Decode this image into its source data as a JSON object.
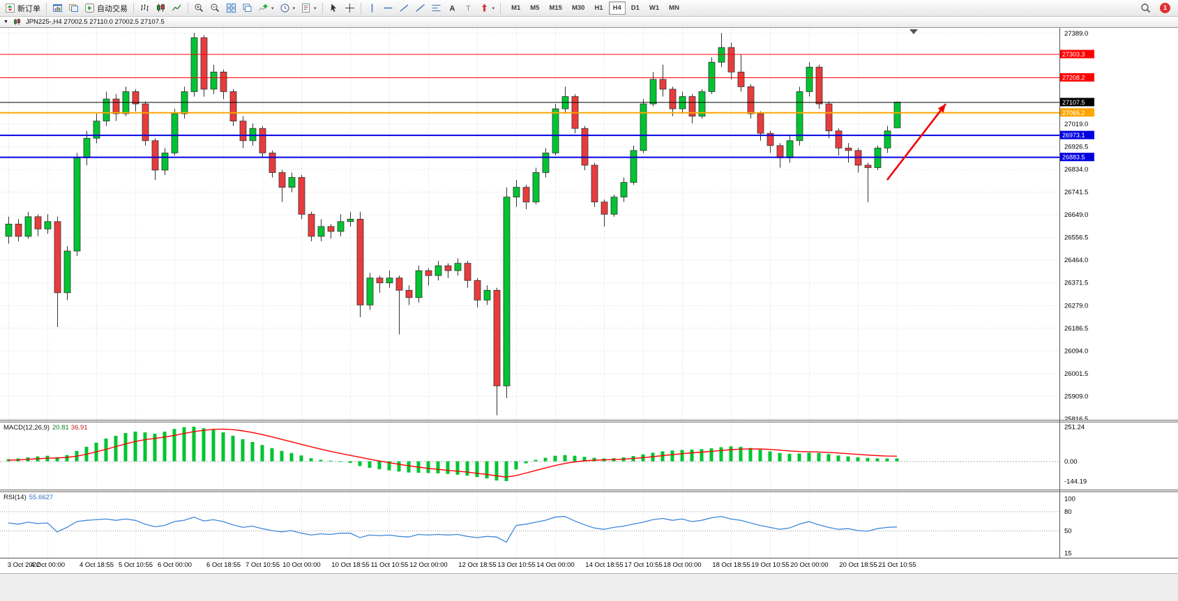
{
  "icons": {
    "dropdown_caret": "▼",
    "button_caret": "▾"
  },
  "toolbar": {
    "buttons": [
      {
        "name": "new-order",
        "icon": "new-order",
        "label": "新订单"
      },
      {
        "sep": true
      },
      {
        "name": "charts",
        "icon": "chart-window"
      },
      {
        "name": "profiles",
        "icon": "profiles"
      },
      {
        "name": "autotrading",
        "icon": "autotrading",
        "label": "自动交易"
      },
      {
        "sep": true
      },
      {
        "name": "chart-bars",
        "icon": "bars"
      },
      {
        "name": "chart-candles",
        "icon": "candles"
      },
      {
        "name": "chart-line",
        "icon": "line"
      },
      {
        "sep": true
      },
      {
        "name": "zoom-in",
        "icon": "zoom-in"
      },
      {
        "name": "zoom-out",
        "icon": "zoom-out"
      },
      {
        "name": "tile-windows",
        "icon": "tile"
      },
      {
        "name": "auto-arrange",
        "icon": "arrange"
      },
      {
        "name": "indicators",
        "icon": "indicators",
        "caret": true
      },
      {
        "name": "periods",
        "icon": "clock",
        "caret": true
      },
      {
        "name": "templates",
        "icon": "template",
        "caret": true
      },
      {
        "sep": true
      },
      {
        "name": "cursor",
        "icon": "cursor"
      },
      {
        "name": "crosshair",
        "icon": "crosshair"
      },
      {
        "sep": true
      },
      {
        "name": "vertical-line",
        "icon": "vline"
      },
      {
        "name": "horizontal-line",
        "icon": "hline"
      },
      {
        "name": "trendline",
        "icon": "trend"
      },
      {
        "name": "equidistant-channel",
        "icon": "channel"
      },
      {
        "name": "fibonacci-retracement",
        "icon": "fibo"
      },
      {
        "name": "text",
        "icon": "text"
      },
      {
        "name": "text-label",
        "icon": "label"
      },
      {
        "name": "arrows",
        "icon": "shapes",
        "caret": true
      },
      {
        "sep": true
      }
    ],
    "timeframes": [
      {
        "label": "M1"
      },
      {
        "label": "M5"
      },
      {
        "label": "M15"
      },
      {
        "label": "M30"
      },
      {
        "label": "H1"
      },
      {
        "label": "H4",
        "active": true
      },
      {
        "label": "D1"
      },
      {
        "label": "W1"
      },
      {
        "label": "MN"
      }
    ],
    "right": {
      "badge": "1"
    }
  },
  "window": {
    "title": "JPN225-,H4  27002.5 27110.0 27002.5 27107.5"
  },
  "chart_data": {
    "type": "candlestick",
    "symbol": "JPN225-",
    "period": "H4",
    "y_range": {
      "top": 27410,
      "bottom": 25812
    },
    "y_ticks": [
      27389.0,
      27019.0,
      26926.5,
      26834.0,
      26741.5,
      26649.0,
      26556.5,
      26464.0,
      26371.5,
      26279.0,
      26186.5,
      26094.0,
      26001.5,
      25909.0,
      25816.5
    ],
    "time_labels": [
      {
        "t": "3 Oct 2022",
        "i": 0
      },
      {
        "t": "4 Oct 00:00",
        "i": 4
      },
      {
        "t": "4 Oct 18:55",
        "i": 9
      },
      {
        "t": "5 Oct 10:55",
        "i": 13
      },
      {
        "t": "6 Oct 00:00",
        "i": 17
      },
      {
        "t": "6 Oct 18:55",
        "i": 22
      },
      {
        "t": "7 Oct 10:55",
        "i": 26
      },
      {
        "t": "10 Oct 00:00",
        "i": 30
      },
      {
        "t": "10 Oct 18:55",
        "i": 35
      },
      {
        "t": "11 Oct 10:55",
        "i": 39
      },
      {
        "t": "12 Oct 00:00",
        "i": 43
      },
      {
        "t": "12 Oct 18:55",
        "i": 48
      },
      {
        "t": "13 Oct 10:55",
        "i": 52
      },
      {
        "t": "14 Oct 00:00",
        "i": 56
      },
      {
        "t": "14 Oct 18:55",
        "i": 61
      },
      {
        "t": "17 Oct 10:55",
        "i": 65
      },
      {
        "t": "18 Oct 00:00",
        "i": 69
      },
      {
        "t": "18 Oct 18:55",
        "i": 74
      },
      {
        "t": "19 Oct 10:55",
        "i": 78
      },
      {
        "t": "20 Oct 00:00",
        "i": 82
      },
      {
        "t": "20 Oct 18:55",
        "i": 87
      },
      {
        "t": "21 Oct 10:55",
        "i": 91
      }
    ],
    "candles": [
      [
        26560,
        26640,
        26530,
        26610
      ],
      [
        26610,
        26630,
        26540,
        26560
      ],
      [
        26560,
        26660,
        26550,
        26640
      ],
      [
        26640,
        26650,
        26560,
        26590
      ],
      [
        26590,
        26650,
        26570,
        26620
      ],
      [
        26620,
        26640,
        26190,
        26330
      ],
      [
        26330,
        26520,
        26300,
        26500
      ],
      [
        26500,
        26900,
        26480,
        26880
      ],
      [
        26880,
        26990,
        26850,
        26960
      ],
      [
        26960,
        27060,
        26940,
        27030
      ],
      [
        27030,
        27150,
        27010,
        27120
      ],
      [
        27120,
        27140,
        27030,
        27060
      ],
      [
        27060,
        27170,
        27050,
        27150
      ],
      [
        27150,
        27160,
        27070,
        27100
      ],
      [
        27100,
        27110,
        26930,
        26950
      ],
      [
        26950,
        26960,
        26790,
        26830
      ],
      [
        26830,
        26920,
        26810,
        26900
      ],
      [
        26900,
        27080,
        26890,
        27060
      ],
      [
        27060,
        27170,
        27040,
        27150
      ],
      [
        27150,
        27389,
        27130,
        27370
      ],
      [
        27370,
        27380,
        27130,
        27160
      ],
      [
        27160,
        27260,
        27140,
        27230
      ],
      [
        27230,
        27240,
        27120,
        27150
      ],
      [
        27150,
        27160,
        27010,
        27030
      ],
      [
        27030,
        27050,
        26920,
        26950
      ],
      [
        26950,
        27020,
        26930,
        27000
      ],
      [
        27000,
        27010,
        26880,
        26900
      ],
      [
        26900,
        26910,
        26800,
        26820
      ],
      [
        26820,
        26830,
        26700,
        26760
      ],
      [
        26760,
        26820,
        26740,
        26800
      ],
      [
        26800,
        26810,
        26630,
        26650
      ],
      [
        26650,
        26660,
        26540,
        26560
      ],
      [
        26560,
        26630,
        26540,
        26600
      ],
      [
        26600,
        26610,
        26550,
        26580
      ],
      [
        26580,
        26650,
        26560,
        26620
      ],
      [
        26620,
        26660,
        26600,
        26630
      ],
      [
        26630,
        26660,
        26230,
        26280
      ],
      [
        26280,
        26410,
        26260,
        26390
      ],
      [
        26390,
        26400,
        26330,
        26370
      ],
      [
        26370,
        26420,
        26350,
        26390
      ],
      [
        26390,
        26400,
        26160,
        26340
      ],
      [
        26340,
        26360,
        26280,
        26310
      ],
      [
        26310,
        26440,
        26290,
        26420
      ],
      [
        26420,
        26430,
        26360,
        26400
      ],
      [
        26400,
        26460,
        26380,
        26440
      ],
      [
        26440,
        26450,
        26390,
        26420
      ],
      [
        26420,
        26470,
        26400,
        26450
      ],
      [
        26450,
        26460,
        26350,
        26380
      ],
      [
        26380,
        26390,
        26270,
        26300
      ],
      [
        26300,
        26360,
        26280,
        26340
      ],
      [
        26340,
        26350,
        25830,
        25950
      ],
      [
        25950,
        26760,
        25900,
        26720
      ],
      [
        26720,
        26790,
        26680,
        26760
      ],
      [
        26760,
        26770,
        26670,
        26700
      ],
      [
        26700,
        26840,
        26690,
        26820
      ],
      [
        26820,
        26920,
        26800,
        26900
      ],
      [
        26900,
        27100,
        26890,
        27080
      ],
      [
        27080,
        27170,
        27060,
        27130
      ],
      [
        27130,
        27140,
        26980,
        27000
      ],
      [
        27000,
        27010,
        26830,
        26850
      ],
      [
        26850,
        26860,
        26680,
        26700
      ],
      [
        26700,
        26710,
        26600,
        26650
      ],
      [
        26650,
        26730,
        26640,
        26720
      ],
      [
        26720,
        26800,
        26700,
        26780
      ],
      [
        26780,
        26930,
        26770,
        26910
      ],
      [
        26910,
        27120,
        26900,
        27100
      ],
      [
        27100,
        27230,
        27090,
        27200
      ],
      [
        27200,
        27260,
        27130,
        27160
      ],
      [
        27160,
        27170,
        27050,
        27080
      ],
      [
        27080,
        27150,
        27060,
        27130
      ],
      [
        27130,
        27140,
        27020,
        27050
      ],
      [
        27050,
        27160,
        27040,
        27150
      ],
      [
        27150,
        27290,
        27140,
        27270
      ],
      [
        27270,
        27389,
        27250,
        27330
      ],
      [
        27330,
        27350,
        27200,
        27230
      ],
      [
        27230,
        27300,
        27150,
        27170
      ],
      [
        27170,
        27180,
        27040,
        27060
      ],
      [
        27060,
        27070,
        26950,
        26980
      ],
      [
        26980,
        26990,
        26900,
        26930
      ],
      [
        26930,
        26940,
        26840,
        26880
      ],
      [
        26880,
        26970,
        26860,
        26950
      ],
      [
        26950,
        27170,
        26930,
        27150
      ],
      [
        27150,
        27270,
        27130,
        27250
      ],
      [
        27250,
        27260,
        27080,
        27100
      ],
      [
        27100,
        27110,
        26960,
        26990
      ],
      [
        26990,
        27000,
        26890,
        26920
      ],
      [
        26920,
        26940,
        26860,
        26910
      ],
      [
        26910,
        26920,
        26820,
        26850
      ],
      [
        26850,
        26860,
        26700,
        26840
      ],
      [
        26840,
        26930,
        26830,
        26920
      ],
      [
        26920,
        27010,
        26900,
        26990
      ],
      [
        27002.5,
        27110.0,
        27002.5,
        27107.5
      ]
    ],
    "levels": [
      {
        "price": 27303.3,
        "label": "27303.3",
        "color": "#ff0000",
        "width": 1
      },
      {
        "price": 27208.2,
        "label": "27208.2",
        "color": "#ff0000",
        "width": 1
      },
      {
        "price": 27065.2,
        "label": "27065.2",
        "color": "#ffa500",
        "width": 2
      },
      {
        "price": 26973.1,
        "label": "26973.1",
        "color": "#0000e0",
        "width": 2
      },
      {
        "price": 26883.5,
        "label": "26883.5",
        "color": "#0000e0",
        "width": 2
      }
    ],
    "current_price": {
      "value": 27107.5,
      "label": "27107.5",
      "box_color": "#000000"
    },
    "annotation_arrow": {
      "from_index": 90,
      "from_price": 26790,
      "to_index": 96,
      "to_price": 27100,
      "color": "#f00000"
    },
    "colors": {
      "up": "#00c432",
      "down": "#e83c3c",
      "wick": "#333333",
      "grid": "#d9d9d9"
    },
    "macd": {
      "title": "MACD(12,26,9)",
      "main_value": "20.81",
      "signal_value": "36.91",
      "max_label": "251.24",
      "zero_label": "0.00",
      "min_label": "-144.19",
      "scale": {
        "max": 251.24,
        "min": -144.19
      },
      "colors": {
        "histogram": "#00c432",
        "signal": "#ff0000"
      },
      "histogram": [
        15,
        20,
        28,
        35,
        40,
        30,
        45,
        75,
        105,
        135,
        165,
        185,
        205,
        215,
        210,
        200,
        215,
        235,
        248,
        251.24,
        240,
        228,
        210,
        185,
        160,
        140,
        118,
        95,
        75,
        60,
        42,
        22,
        10,
        4,
        -2,
        -12,
        -35,
        -48,
        -58,
        -66,
        -75,
        -82,
        -84,
        -86,
        -88,
        -92,
        -98,
        -105,
        -115,
        -125,
        -140,
        -144.19,
        -60,
        -15,
        10,
        25,
        40,
        45,
        40,
        32,
        25,
        20,
        22,
        28,
        38,
        50,
        62,
        72,
        78,
        82,
        85,
        88,
        94,
        102,
        108,
        105,
        96,
        84,
        72,
        60,
        54,
        56,
        62,
        60,
        52,
        42,
        35,
        29,
        24,
        21,
        20,
        20.81
      ],
      "signal": [
        8,
        10,
        14,
        18,
        22,
        24,
        28,
        37,
        51,
        68,
        87,
        107,
        126,
        144,
        157,
        166,
        176,
        188,
        202,
        215,
        225,
        232,
        234,
        230,
        221,
        209,
        194,
        177,
        159,
        141,
        123,
        105,
        88,
        72,
        57,
        43,
        29,
        15,
        2,
        -10,
        -22,
        -33,
        -43,
        -52,
        -59,
        -66,
        -72,
        -79,
        -88,
        -96,
        -106,
        -115,
        -104,
        -86,
        -67,
        -49,
        -31,
        -16,
        -5,
        3,
        8,
        10,
        12,
        15,
        20,
        26,
        33,
        41,
        48,
        55,
        61,
        66,
        72,
        78,
        84,
        88,
        90,
        89,
        86,
        81,
        75,
        71,
        69,
        67,
        64,
        60,
        55,
        50,
        45,
        41,
        38,
        36.91
      ]
    },
    "rsi": {
      "title": "RSI(14)",
      "value": "55.6627",
      "axis_labels": [
        100,
        80,
        50,
        15
      ],
      "grid_levels": [
        80,
        50
      ],
      "color": "#3f87d9",
      "values": [
        62,
        60,
        63,
        61,
        62,
        48,
        55,
        64,
        66,
        67,
        68,
        66,
        68,
        66,
        60,
        56,
        58,
        64,
        66,
        71,
        65,
        67,
        64,
        59,
        55,
        57,
        53,
        50,
        48,
        50,
        46,
        43,
        45,
        44,
        46,
        46,
        39,
        43,
        42,
        43,
        41,
        40,
        44,
        43,
        44,
        43,
        44,
        41,
        39,
        41,
        40,
        32,
        58,
        60,
        63,
        66,
        71,
        72,
        65,
        59,
        54,
        52,
        55,
        57,
        60,
        63,
        67,
        69,
        66,
        68,
        64,
        66,
        70,
        72,
        68,
        66,
        62,
        58,
        55,
        52,
        54,
        60,
        64,
        59,
        55,
        52,
        53,
        50,
        49,
        53,
        55,
        55.66
      ]
    }
  }
}
